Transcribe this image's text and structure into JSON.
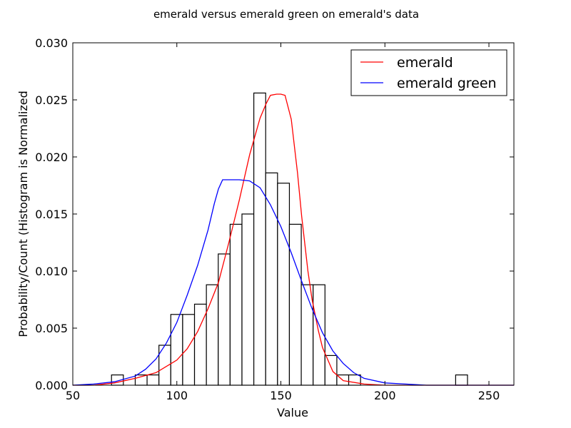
{
  "chart_data": {
    "type": "histogram",
    "title": "emerald versus emerald green on emerald's data",
    "xlabel": "Value",
    "ylabel": "Probability/Count (Histogram is Normalized",
    "xlim": [
      50,
      262
    ],
    "ylim": [
      0,
      0.03
    ],
    "x_ticks": [
      "50",
      "100",
      "150",
      "200",
      "250"
    ],
    "x_tick_values": [
      50,
      100,
      150,
      200,
      250
    ],
    "y_ticks": [
      "0.000",
      "0.005",
      "0.010",
      "0.015",
      "0.020",
      "0.025",
      "0.030"
    ],
    "y_tick_values": [
      0,
      0.005,
      0.01,
      0.015,
      0.02,
      0.025,
      0.03
    ],
    "legend_position": "top-right",
    "histogram": {
      "bin_width": 5.7,
      "bin_starts": [
        68.6,
        80.0,
        85.7,
        91.4,
        97.1,
        102.8,
        108.5,
        114.2,
        119.9,
        125.6,
        131.3,
        137.0,
        142.7,
        148.4,
        154.1,
        159.8,
        165.5,
        171.2,
        176.9,
        182.6,
        234.0
      ],
      "values": [
        0.0009,
        0.0009,
        0.0009,
        0.0035,
        0.0062,
        0.0062,
        0.0071,
        0.0088,
        0.0115,
        0.0141,
        0.015,
        0.0256,
        0.0186,
        0.0177,
        0.0141,
        0.0088,
        0.0088,
        0.0026,
        0.0009,
        0.0009,
        0.0009
      ],
      "edge_color": "#000000",
      "fill_color": "#ffffff"
    },
    "series": [
      {
        "name": "emerald",
        "color": "#ff0000",
        "x": [
          50,
          60,
          70,
          80,
          90,
          100,
          105,
          110,
          115,
          120,
          125,
          130,
          135,
          140,
          143,
          145,
          148,
          150,
          152,
          155,
          158,
          160,
          163,
          165,
          168,
          170,
          175,
          180,
          190,
          200,
          210,
          220,
          230,
          240,
          250,
          262
        ],
        "y": [
          0.0,
          0.0,
          0.0002,
          0.0006,
          0.0011,
          0.0022,
          0.0032,
          0.0047,
          0.0067,
          0.009,
          0.0125,
          0.0162,
          0.0202,
          0.0234,
          0.0247,
          0.0254,
          0.0255,
          0.0255,
          0.0254,
          0.0233,
          0.0186,
          0.0148,
          0.01,
          0.0075,
          0.0048,
          0.0033,
          0.0012,
          0.0004,
          0.0001,
          0.0,
          0.0,
          0.0,
          0.0,
          0.0,
          0.0,
          0.0
        ]
      },
      {
        "name": "emerald green",
        "color": "#0000ff",
        "x": [
          50,
          60,
          70,
          80,
          85,
          90,
          95,
          100,
          105,
          110,
          115,
          118,
          120,
          122,
          125,
          130,
          135,
          140,
          145,
          150,
          155,
          160,
          165,
          170,
          175,
          180,
          185,
          190,
          200,
          210,
          220,
          230,
          240,
          250,
          262
        ],
        "y": [
          0.0,
          0.0001,
          0.0003,
          0.0008,
          0.0014,
          0.0023,
          0.0037,
          0.0055,
          0.0079,
          0.0105,
          0.0136,
          0.0159,
          0.0172,
          0.018,
          0.018,
          0.018,
          0.0179,
          0.0173,
          0.0158,
          0.0139,
          0.0116,
          0.0091,
          0.0067,
          0.0046,
          0.003,
          0.0019,
          0.0011,
          0.0006,
          0.0002,
          0.0001,
          0.0,
          0.0,
          0.0,
          0.0,
          0.0
        ]
      }
    ]
  }
}
